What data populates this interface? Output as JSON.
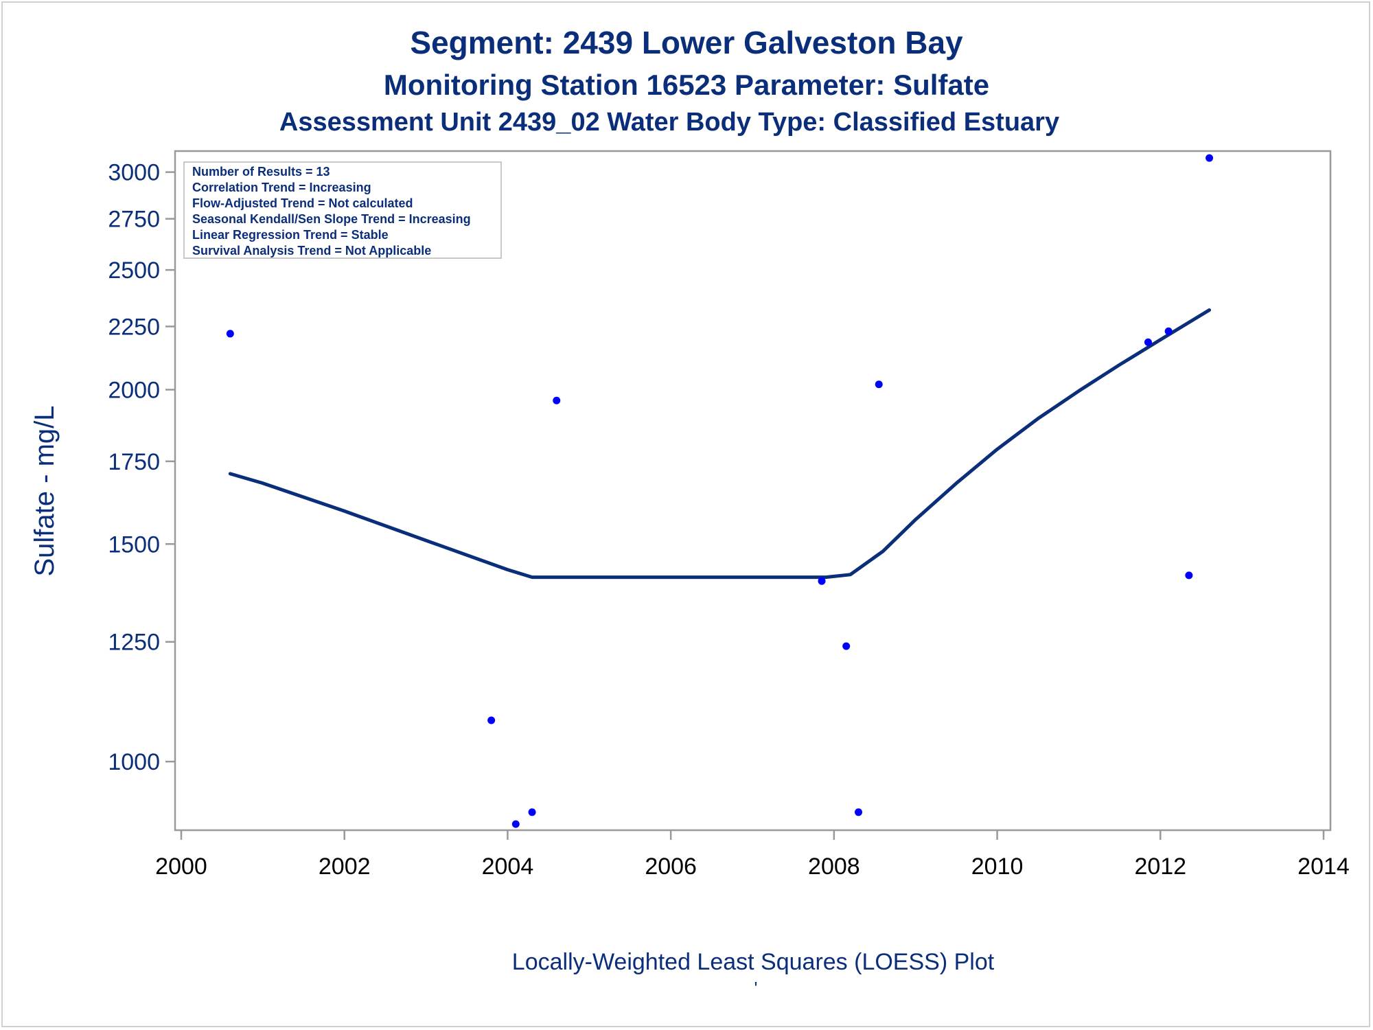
{
  "titles": {
    "line1": "Segment: 2439  Lower Galveston Bay",
    "line2": "Monitoring Station 16523 Parameter: Sulfate",
    "line3": "Assessment Unit 2439_02   Water Body Type: Classified Estuary"
  },
  "info_box": {
    "lines": [
      "Number of Results = 13",
      "Correlation Trend = Increasing",
      "Flow-Adjusted Trend = Not calculated",
      "Seasonal Kendall/Sen Slope Trend = Increasing",
      "Linear Regression Trend = Stable",
      "Survival Analysis Trend = Not Applicable"
    ]
  },
  "footer": {
    "caption": "Locally-Weighted Least Squares (LOESS) Plot",
    "mark": "'"
  },
  "colors": {
    "title": "#0b2e7a",
    "y_axis_text": "#0b2e7a",
    "x_axis_text": "#000000",
    "points": "#0000ff",
    "loess_line": "#0b2e7a",
    "axis": "#999999"
  },
  "chart_data": {
    "type": "scatter",
    "title": "Segment: 2439  Lower Galveston Bay",
    "xlabel": "",
    "ylabel": "Sulfate - mg/L",
    "y_scale": "log",
    "xlim": [
      2000,
      2014
    ],
    "ylim": [
      880,
      3120
    ],
    "x_ticks": [
      2000,
      2002,
      2004,
      2006,
      2008,
      2010,
      2012,
      2014
    ],
    "y_ticks": [
      1000,
      1250,
      1500,
      1750,
      2000,
      2250,
      2500,
      2750,
      3000
    ],
    "grid": false,
    "series": [
      {
        "kind": "points",
        "x": [
          2000.6,
          2003.8,
          2004.1,
          2004.3,
          2004.6,
          2007.85,
          2008.15,
          2008.3,
          2008.55,
          2011.85,
          2012.1,
          2012.35,
          2012.6
        ],
        "y": [
          2220,
          1080,
          890,
          910,
          1960,
          1400,
          1240,
          910,
          2020,
          2185,
          2230,
          1415,
          3080
        ]
      },
      {
        "kind": "loess",
        "x": [
          2000.6,
          2001.0,
          2002.0,
          2003.0,
          2004.0,
          2004.3,
          2005.0,
          2006.0,
          2007.0,
          2007.9,
          2008.2,
          2008.6,
          2009.0,
          2009.5,
          2010.0,
          2010.5,
          2011.0,
          2011.5,
          2012.0,
          2012.6
        ],
        "y": [
          1710,
          1680,
          1595,
          1510,
          1430,
          1410,
          1410,
          1410,
          1410,
          1410,
          1417,
          1480,
          1570,
          1680,
          1790,
          1895,
          1995,
          2095,
          2195,
          2320
        ]
      }
    ]
  }
}
